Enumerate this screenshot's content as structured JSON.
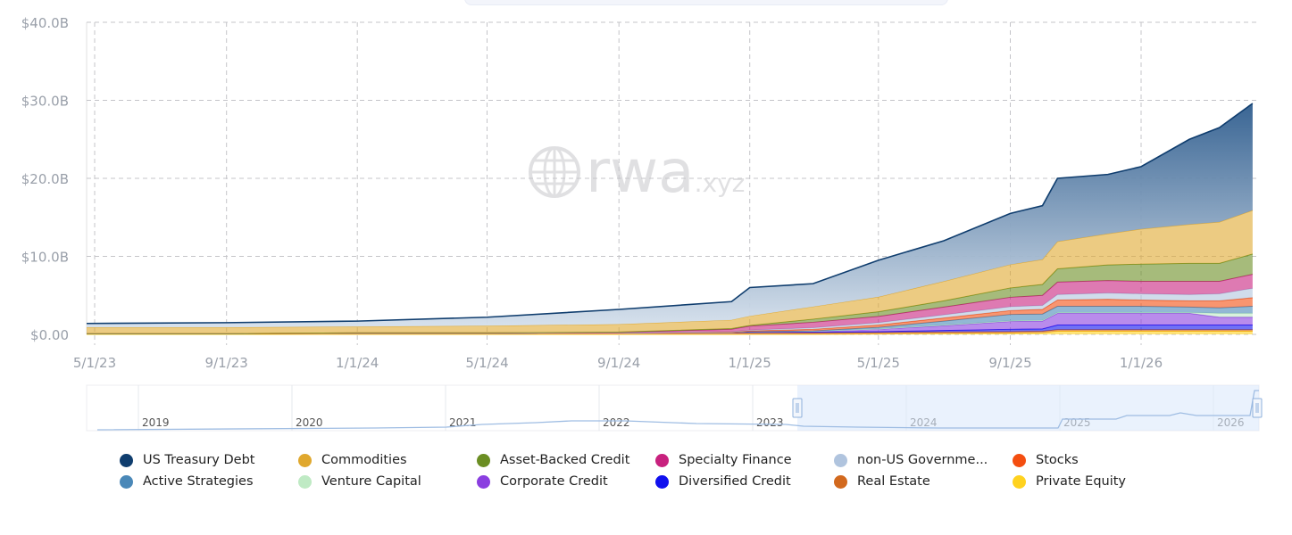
{
  "watermark": "rwa.xyz",
  "chart_data": {
    "type": "area",
    "stacked": true,
    "title": "",
    "xlabel": "",
    "ylabel": "",
    "ylim": [
      0,
      40
    ],
    "yunit": "$B",
    "yticks": [
      "$0.00",
      "$10.0B",
      "$20.0B",
      "$30.0B",
      "$40.0B"
    ],
    "ytick_values": [
      0,
      10,
      20,
      30,
      40
    ],
    "xticks": [
      "5/1/23",
      "9/1/23",
      "1/1/24",
      "5/1/24",
      "9/1/24",
      "1/1/25",
      "5/1/25",
      "9/1/25",
      "1/1/26"
    ],
    "xtick_dates": [
      "2023-05-01",
      "2023-09-01",
      "2024-01-01",
      "2024-05-01",
      "2024-09-01",
      "2025-01-01",
      "2025-05-01",
      "2025-09-01",
      "2026-01-01"
    ],
    "grid": true,
    "legend_position": "bottom",
    "x": [
      "2023-05-01",
      "2023-09-01",
      "2024-01-01",
      "2024-05-01",
      "2024-09-01",
      "2024-12-15",
      "2025-01-01",
      "2025-03-01",
      "2025-05-01",
      "2025-07-01",
      "2025-09-01",
      "2025-10-01",
      "2025-10-15",
      "2025-12-01",
      "2026-01-01",
      "2026-02-15",
      "2026-03-15",
      "2026-04-15"
    ],
    "series": [
      {
        "name": "Private Equity",
        "color": "#ffd21f",
        "values": [
          0,
          0,
          0,
          0,
          0,
          0,
          0,
          0,
          0.05,
          0.1,
          0.15,
          0.2,
          0.4,
          0.4,
          0.4,
          0.4,
          0.4,
          0.4
        ]
      },
      {
        "name": "Real Estate",
        "color": "#d2691e",
        "values": [
          0.1,
          0.1,
          0.15,
          0.15,
          0.2,
          0.2,
          0.2,
          0.2,
          0.2,
          0.2,
          0.2,
          0.2,
          0.2,
          0.2,
          0.2,
          0.2,
          0.2,
          0.2
        ]
      },
      {
        "name": "Diversified Credit",
        "color": "#1010ee",
        "values": [
          0,
          0,
          0,
          0,
          0,
          0.05,
          0.1,
          0.1,
          0.1,
          0.2,
          0.3,
          0.3,
          0.6,
          0.6,
          0.6,
          0.6,
          0.6,
          0.6
        ]
      },
      {
        "name": "Corporate Credit",
        "color": "#8a3ee0",
        "values": [
          0,
          0,
          0,
          0,
          0,
          0,
          0.05,
          0.1,
          0.3,
          0.6,
          1.0,
          1.0,
          1.5,
          1.5,
          1.5,
          1.5,
          1.0,
          1.0
        ]
      },
      {
        "name": "Venture Capital",
        "color": "#bfeac4",
        "values": [
          0,
          0,
          0,
          0,
          0,
          0,
          0,
          0,
          0.05,
          0.1,
          0.1,
          0.1,
          0.1,
          0.1,
          0.1,
          0.1,
          0.5,
          0.5
        ]
      },
      {
        "name": "Active Strategies",
        "color": "#4a88b8",
        "values": [
          0,
          0,
          0,
          0,
          0,
          0,
          0,
          0.05,
          0.2,
          0.5,
          0.8,
          0.8,
          0.8,
          0.8,
          0.8,
          0.7,
          0.7,
          0.9
        ]
      },
      {
        "name": "Stocks",
        "color": "#f44e10",
        "values": [
          0,
          0,
          0,
          0,
          0,
          0.05,
          0.1,
          0.2,
          0.3,
          0.4,
          0.5,
          0.6,
          0.8,
          0.9,
          0.8,
          0.8,
          0.9,
          1.1
        ]
      },
      {
        "name": "non-US Government Debt",
        "color": "#b0c4de",
        "values": [
          0,
          0,
          0,
          0,
          0,
          0.05,
          0.1,
          0.2,
          0.3,
          0.4,
          0.5,
          0.5,
          0.7,
          0.8,
          0.8,
          0.8,
          0.9,
          1.2
        ]
      },
      {
        "name": "Specialty Finance",
        "color": "#c8217e",
        "values": [
          0,
          0,
          0.05,
          0.05,
          0.05,
          0.3,
          0.5,
          0.7,
          0.8,
          1.0,
          1.2,
          1.3,
          1.6,
          1.6,
          1.6,
          1.7,
          1.6,
          1.8
        ]
      },
      {
        "name": "Asset-Backed Credit",
        "color": "#6b8e23",
        "values": [
          0,
          0,
          0,
          0,
          0.05,
          0.1,
          0.1,
          0.4,
          0.6,
          0.8,
          1.2,
          1.4,
          1.7,
          2.0,
          2.2,
          2.3,
          2.3,
          2.6
        ]
      },
      {
        "name": "Commodities",
        "color": "#e0a82e",
        "values": [
          0.8,
          0.8,
          0.8,
          0.9,
          1.0,
          1.1,
          1.2,
          1.6,
          1.9,
          2.5,
          3.0,
          3.2,
          3.5,
          4.0,
          4.5,
          5.0,
          5.3,
          5.6
        ]
      },
      {
        "name": "US Treasury Debt",
        "color": "#0f3d6e",
        "values": [
          0.5,
          0.6,
          0.7,
          1.1,
          1.9,
          2.35,
          3.65,
          2.95,
          4.7,
          5.2,
          6.55,
          6.9,
          8.1,
          7.6,
          8.0,
          10.9,
          12.1,
          13.7
        ]
      }
    ],
    "navigator": {
      "years": [
        "2019",
        "2020",
        "2021",
        "2022",
        "2023",
        "2024",
        "2025",
        "2026"
      ],
      "selected_range": [
        "2023-04-24",
        "2026-04-19"
      ]
    }
  },
  "legend": [
    {
      "label": "US Treasury Debt",
      "color": "#0f3d6e"
    },
    {
      "label": "Commodities",
      "color": "#e0a82e"
    },
    {
      "label": "Asset-Backed Credit",
      "color": "#6b8e23"
    },
    {
      "label": "Specialty Finance",
      "color": "#c8217e"
    },
    {
      "label": "non-US Governme...",
      "color": "#b0c4de"
    },
    {
      "label": "Stocks",
      "color": "#f44e10"
    },
    {
      "label": "Active Strategies",
      "color": "#4a88b8"
    },
    {
      "label": "Venture Capital",
      "color": "#bfeac4"
    },
    {
      "label": "Corporate Credit",
      "color": "#8a3ee0"
    },
    {
      "label": "Diversified Credit",
      "color": "#1010ee"
    },
    {
      "label": "Real Estate",
      "color": "#d2691e"
    },
    {
      "label": "Private Equity",
      "color": "#ffd21f"
    }
  ]
}
